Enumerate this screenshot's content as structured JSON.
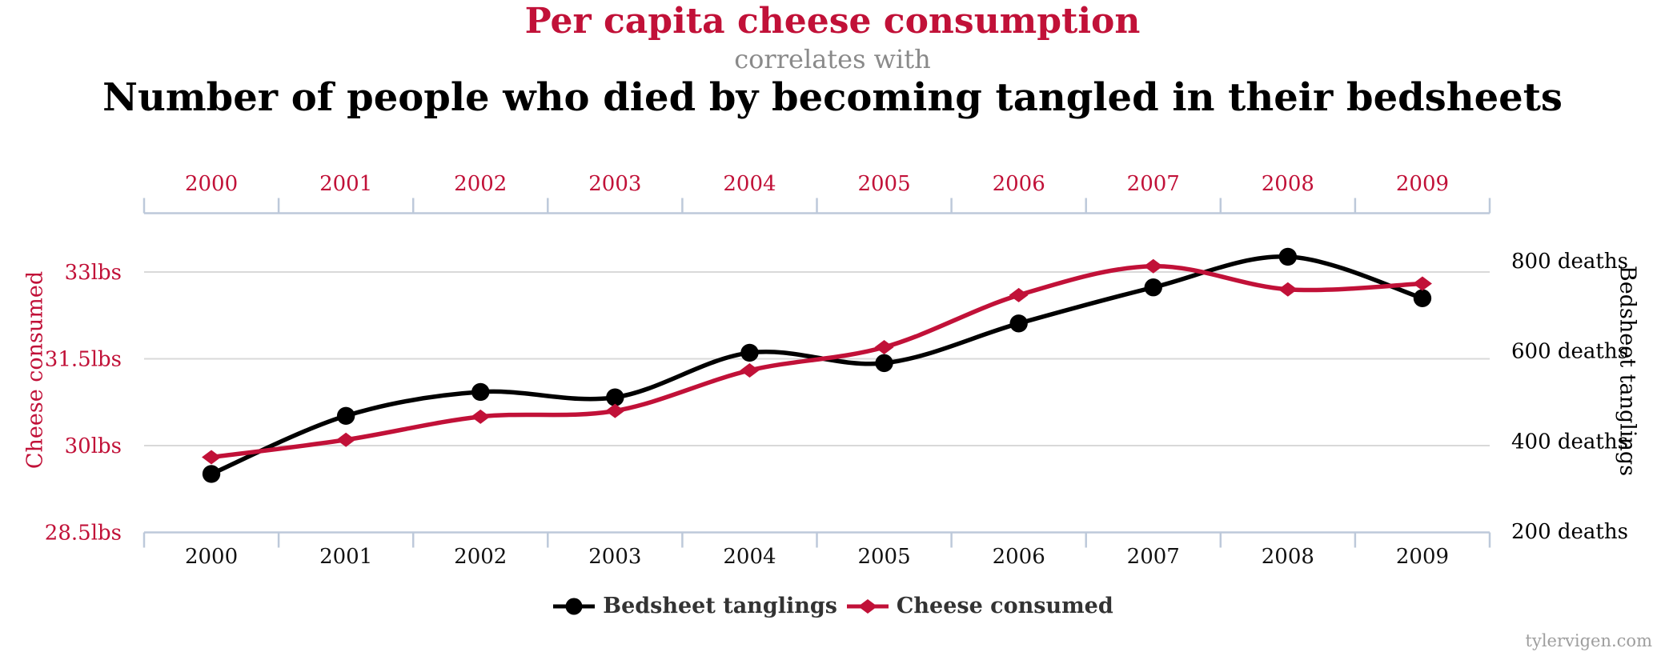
{
  "header": {
    "title_primary": "Per capita cheese consumption",
    "connector": "correlates with",
    "title_secondary": "Number of people who died by becoming tangled in their bedsheets"
  },
  "footer": {
    "watermark": "tylervigen.com"
  },
  "colors": {
    "red": "#c11138",
    "black": "#000000",
    "year_label_bottom": "#111111",
    "connector_gray": "#8a8a8a",
    "axis_line": "#bdc9da",
    "gridline": "#d9d9d9",
    "legend_text": "#333333",
    "watermark_gray": "#9e9e9e"
  },
  "chart_data": {
    "type": "line",
    "x": [
      2000,
      2001,
      2002,
      2003,
      2004,
      2005,
      2006,
      2007,
      2008,
      2009
    ],
    "series": [
      {
        "name": "Bedsheet tanglings",
        "axis": "right",
        "marker": "circle",
        "color": "#000000",
        "values": [
          327,
          456,
          509,
          497,
          596,
          573,
          661,
          741,
          809,
          717
        ]
      },
      {
        "name": "Cheese consumed",
        "axis": "left",
        "marker": "diamond",
        "color": "#c11138",
        "values": [
          29.8,
          30.1,
          30.5,
          30.6,
          31.3,
          31.7,
          32.6,
          33.1,
          32.7,
          32.8
        ]
      }
    ],
    "left_axis": {
      "title": "Cheese consumed",
      "unit": "lbs",
      "ticks": [
        28.5,
        30,
        31.5,
        33
      ],
      "tick_labels": [
        "28.5lbs",
        "30lbs",
        "31.5lbs",
        "33lbs"
      ],
      "range": [
        28.5,
        33.75
      ]
    },
    "right_axis": {
      "title": "Bedsheet tanglings",
      "unit": "deaths",
      "ticks": [
        200,
        400,
        600,
        800
      ],
      "tick_labels": [
        "200 deaths",
        "400 deaths",
        "600 deaths",
        "800 deaths"
      ],
      "range": [
        200,
        860
      ]
    },
    "x_axis": {
      "labels_top": true,
      "labels_bottom": true
    },
    "grid": "horizontal",
    "legend_position": "bottom",
    "smooth_lines": true
  }
}
